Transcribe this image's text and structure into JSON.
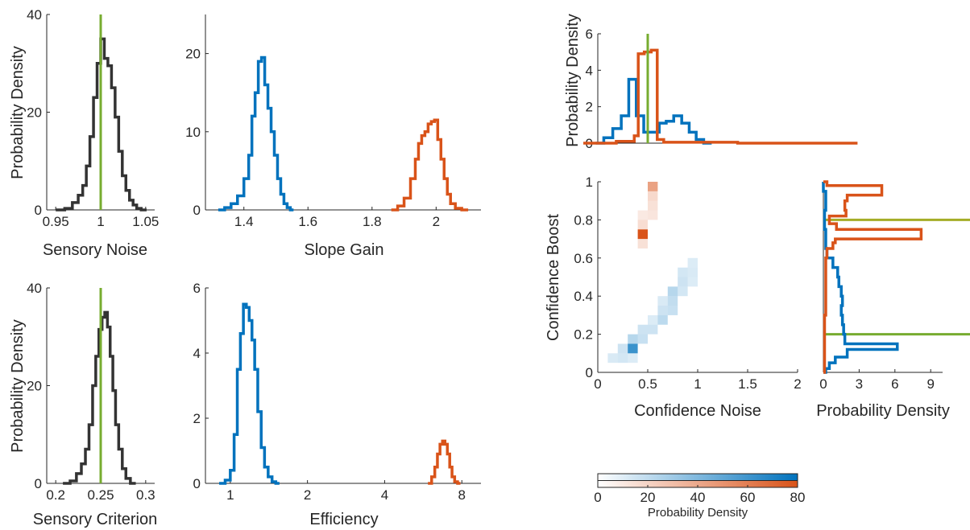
{
  "colors": {
    "dark": "#333333",
    "blue": "#0072BD",
    "orange": "#D95319",
    "green": "#77AC30",
    "olive": "#A4AD26",
    "axis": "#262626"
  },
  "panels": {
    "noise": {
      "xlabel": "Sensory Noise",
      "ylabel": "Probability Density",
      "xticks": [
        "0.95",
        "1",
        "1.05"
      ],
      "yticks": [
        "0",
        "20",
        "40"
      ]
    },
    "slope": {
      "xlabel": "Slope Gain",
      "ylabel": "",
      "xticks": [
        "1.4",
        "1.6",
        "1.8",
        "2"
      ],
      "yticks": [
        "0",
        "10",
        "20"
      ]
    },
    "criterion": {
      "xlabel": "Sensory Criterion",
      "ylabel": "Probability Density",
      "xticks": [
        "0.2",
        "0.25",
        "0.3"
      ],
      "yticks": [
        "0",
        "20",
        "40"
      ]
    },
    "efficiency": {
      "xlabel": "Efficiency",
      "ylabel": "",
      "xticks": [
        "1",
        "2",
        "4",
        "8"
      ],
      "yticks": [
        "0",
        "2",
        "4",
        "6"
      ]
    },
    "topMarginal": {
      "xlabel": "",
      "ylabel": "Probability Density",
      "xticks": [],
      "yticks": [
        "0",
        "2",
        "4",
        "6"
      ]
    },
    "joint": {
      "xlabel": "Confidence Noise",
      "ylabel": "Confidence Boost",
      "xticks": [
        "0",
        "0.5",
        "1",
        "1.5",
        "2"
      ],
      "yticks": [
        "0",
        "0.2",
        "0.4",
        "0.6",
        "0.8",
        "1"
      ]
    },
    "rightMarginal": {
      "xlabel": "Probability Density",
      "ylabel": "",
      "xticks": [
        "0",
        "3",
        "6",
        "9"
      ],
      "yticks": []
    },
    "colorbar": {
      "xlabel": "Probability Density",
      "ticks": [
        "0",
        "20",
        "40",
        "60",
        "80"
      ]
    }
  },
  "chart_data": [
    {
      "type": "histogram-step",
      "xlabel": "Sensory Noise",
      "ylabel": "Probability Density",
      "xlim": [
        0.94,
        1.06
      ],
      "ylim": [
        0,
        40
      ],
      "true_value": 1.0,
      "series": [
        {
          "color": "dark",
          "x": [
            0.955,
            0.965,
            0.972,
            0.978,
            0.982,
            0.986,
            0.99,
            0.994,
            0.998,
            1.002,
            1.006,
            1.01,
            1.014,
            1.018,
            1.022,
            1.026,
            1.03,
            1.034,
            1.038,
            1.042,
            1.048
          ],
          "y": [
            0,
            0.3,
            1.5,
            3,
            5,
            9,
            15,
            23,
            30,
            35,
            31,
            29.5,
            25,
            19,
            12,
            7,
            4,
            2,
            1,
            0.3,
            0
          ]
        }
      ]
    },
    {
      "type": "histogram-step",
      "xlabel": "Slope Gain",
      "ylabel": "",
      "xlim": [
        1.28,
        2.14
      ],
      "ylim": [
        0,
        25
      ],
      "series": [
        {
          "color": "blue",
          "x": [
            1.33,
            1.35,
            1.37,
            1.39,
            1.41,
            1.42,
            1.43,
            1.44,
            1.45,
            1.46,
            1.47,
            1.48,
            1.49,
            1.5,
            1.51,
            1.52,
            1.53,
            1.54,
            1.55
          ],
          "y": [
            0,
            0.3,
            0.8,
            1.8,
            4,
            7,
            12,
            15,
            19,
            19.5,
            16,
            13,
            10,
            7,
            4,
            2,
            0.8,
            0.3,
            0
          ]
        },
        {
          "color": "orange",
          "x": [
            1.87,
            1.89,
            1.91,
            1.93,
            1.94,
            1.95,
            1.96,
            1.97,
            1.98,
            1.99,
            2.0,
            2.01,
            2.02,
            2.03,
            2.04,
            2.05,
            2.07,
            2.09
          ],
          "y": [
            0,
            0.5,
            1.5,
            4,
            6.5,
            8.5,
            9.5,
            10,
            11,
            11.3,
            11.5,
            9,
            6.5,
            4,
            2,
            0.8,
            0.2,
            0
          ]
        }
      ]
    },
    {
      "type": "histogram-step",
      "xlabel": "Sensory Criterion",
      "ylabel": "Probability Density",
      "xlim": [
        0.19,
        0.31
      ],
      "ylim": [
        0,
        40
      ],
      "true_value": 0.25,
      "series": [
        {
          "color": "dark",
          "x": [
            0.212,
            0.22,
            0.226,
            0.231,
            0.235,
            0.239,
            0.243,
            0.246,
            0.25,
            0.253,
            0.256,
            0.259,
            0.262,
            0.265,
            0.268,
            0.272,
            0.276,
            0.28,
            0.286
          ],
          "y": [
            0,
            0.5,
            2,
            4,
            7,
            12,
            20,
            26,
            31.5,
            34,
            35,
            32,
            26,
            19,
            12,
            7,
            3,
            1,
            0
          ]
        }
      ]
    },
    {
      "type": "histogram-step",
      "xlabel": "Efficiency",
      "ylabel": "",
      "x_scale": "log2",
      "xlim": [
        0.8,
        9.5
      ],
      "ylim": [
        0,
        6
      ],
      "series": [
        {
          "color": "blue",
          "x": [
            0.93,
            0.98,
            1.02,
            1.05,
            1.08,
            1.11,
            1.14,
            1.17,
            1.2,
            1.23,
            1.26,
            1.3,
            1.34,
            1.38,
            1.43,
            1.48,
            1.53
          ],
          "y": [
            0,
            0.1,
            0.4,
            1.5,
            3.5,
            4.6,
            5.5,
            5.4,
            5,
            4.4,
            3.5,
            2.2,
            1.1,
            0.5,
            0.2,
            0.05,
            0
          ]
        },
        {
          "color": "orange",
          "x": [
            6.0,
            6.2,
            6.35,
            6.5,
            6.65,
            6.8,
            6.95,
            7.1,
            7.25,
            7.4,
            7.6,
            7.8
          ],
          "y": [
            0,
            0.2,
            0.5,
            0.9,
            1.2,
            1.3,
            1.2,
            0.9,
            0.5,
            0.2,
            0.05,
            0
          ]
        }
      ]
    },
    {
      "type": "histogram-step",
      "xlabel": "",
      "ylabel": "Probability Density",
      "xlim": [
        0,
        2
      ],
      "ylim": [
        0,
        6
      ],
      "true_value": 0.5,
      "series": [
        {
          "color": "blue",
          "x": [
            0.02,
            0.1,
            0.2,
            0.27,
            0.35,
            0.42,
            0.5,
            0.58,
            0.65,
            0.72,
            0.8,
            0.88,
            0.95,
            1.02,
            1.1
          ],
          "y": [
            0,
            0.3,
            0.8,
            1.5,
            3.5,
            1.5,
            0.6,
            0.6,
            1.1,
            1.2,
            1.5,
            1.1,
            0.6,
            0.2,
            0
          ]
        },
        {
          "color": "orange",
          "x": [
            0.02,
            0.35,
            0.38,
            0.43,
            0.5,
            0.57,
            0.62,
            0.7,
            0.8,
            2.0
          ],
          "y": [
            0,
            0.1,
            0.4,
            4.9,
            5.0,
            5.1,
            0.2,
            0.05,
            0.05,
            0
          ]
        }
      ]
    },
    {
      "type": "heatmap",
      "xlabel": "Confidence Noise",
      "ylabel": "Confidence Boost",
      "xlim": [
        0,
        2
      ],
      "ylim": [
        0,
        1
      ],
      "cells": [
        {
          "x": 0.55,
          "y": 0.975,
          "v": 40,
          "color": "orange"
        },
        {
          "x": 0.55,
          "y": 0.925,
          "v": 12,
          "color": "orange"
        },
        {
          "x": 0.55,
          "y": 0.875,
          "v": 8,
          "color": "orange"
        },
        {
          "x": 0.55,
          "y": 0.825,
          "v": 6,
          "color": "orange"
        },
        {
          "x": 0.45,
          "y": 0.825,
          "v": 4,
          "color": "orange"
        },
        {
          "x": 0.45,
          "y": 0.775,
          "v": 10,
          "color": "orange"
        },
        {
          "x": 0.45,
          "y": 0.725,
          "v": 80,
          "color": "orange"
        },
        {
          "x": 0.45,
          "y": 0.675,
          "v": 8,
          "color": "orange"
        },
        {
          "x": 0.15,
          "y": 0.075,
          "v": 6,
          "color": "blue"
        },
        {
          "x": 0.25,
          "y": 0.075,
          "v": 8,
          "color": "blue"
        },
        {
          "x": 0.25,
          "y": 0.125,
          "v": 10,
          "color": "blue"
        },
        {
          "x": 0.35,
          "y": 0.125,
          "v": 60,
          "color": "blue"
        },
        {
          "x": 0.35,
          "y": 0.175,
          "v": 18,
          "color": "blue"
        },
        {
          "x": 0.45,
          "y": 0.175,
          "v": 12,
          "color": "blue"
        },
        {
          "x": 0.45,
          "y": 0.225,
          "v": 10,
          "color": "blue"
        },
        {
          "x": 0.55,
          "y": 0.225,
          "v": 10,
          "color": "blue"
        },
        {
          "x": 0.65,
          "y": 0.275,
          "v": 16,
          "color": "blue"
        },
        {
          "x": 0.65,
          "y": 0.325,
          "v": 10,
          "color": "blue"
        },
        {
          "x": 0.75,
          "y": 0.325,
          "v": 12,
          "color": "blue"
        },
        {
          "x": 0.75,
          "y": 0.375,
          "v": 14,
          "color": "blue"
        },
        {
          "x": 0.75,
          "y": 0.425,
          "v": 18,
          "color": "blue"
        },
        {
          "x": 0.85,
          "y": 0.425,
          "v": 8,
          "color": "blue"
        },
        {
          "x": 0.85,
          "y": 0.475,
          "v": 10,
          "color": "blue"
        },
        {
          "x": 0.85,
          "y": 0.525,
          "v": 8,
          "color": "blue"
        },
        {
          "x": 0.95,
          "y": 0.525,
          "v": 6,
          "color": "blue"
        },
        {
          "x": 0.95,
          "y": 0.575,
          "v": 5,
          "color": "blue"
        },
        {
          "x": 0.95,
          "y": 0.475,
          "v": 5,
          "color": "blue"
        },
        {
          "x": 0.65,
          "y": 0.375,
          "v": 6,
          "color": "blue"
        },
        {
          "x": 0.55,
          "y": 0.275,
          "v": 5,
          "color": "blue"
        },
        {
          "x": 0.35,
          "y": 0.075,
          "v": 5,
          "color": "blue"
        }
      ],
      "vmax": 80
    },
    {
      "type": "histogram-step-horizontal",
      "xlabel": "Probability Density",
      "ylabel": "",
      "xlim": [
        0,
        10
      ],
      "ylim": [
        0,
        1
      ],
      "true_values": [
        {
          "y": 0.8,
          "color": "olive"
        },
        {
          "y": 0.2,
          "color": "green"
        }
      ],
      "series": [
        {
          "color": "blue",
          "y": [
            1.0,
            0.95,
            0.85,
            0.75,
            0.65,
            0.6,
            0.55,
            0.5,
            0.45,
            0.4,
            0.35,
            0.3,
            0.25,
            0.2,
            0.15,
            0.12,
            0.08,
            0.05,
            0.02
          ],
          "x": [
            0,
            0.2,
            0.1,
            0.2,
            0.3,
            0.8,
            1.2,
            1.3,
            1.5,
            1.6,
            1.5,
            1.6,
            1.7,
            1.8,
            6.2,
            2.0,
            1.0,
            0.5,
            0.2
          ]
        },
        {
          "color": "orange",
          "y": [
            1.0,
            0.98,
            0.93,
            0.9,
            0.85,
            0.82,
            0.78,
            0.75,
            0.7,
            0.68,
            0.65,
            0.6,
            0.3,
            0.0
          ],
          "x": [
            0.3,
            4.9,
            2.0,
            1.8,
            1.9,
            0.5,
            1.1,
            8.2,
            1.0,
            0.8,
            0.3,
            0.2,
            0.1,
            0
          ]
        }
      ]
    },
    {
      "type": "colorbar",
      "xlabel": "Probability Density",
      "range": [
        0,
        80
      ],
      "ticks": [
        0,
        20,
        40,
        60,
        80
      ],
      "rows": [
        "blue",
        "orange"
      ]
    }
  ]
}
